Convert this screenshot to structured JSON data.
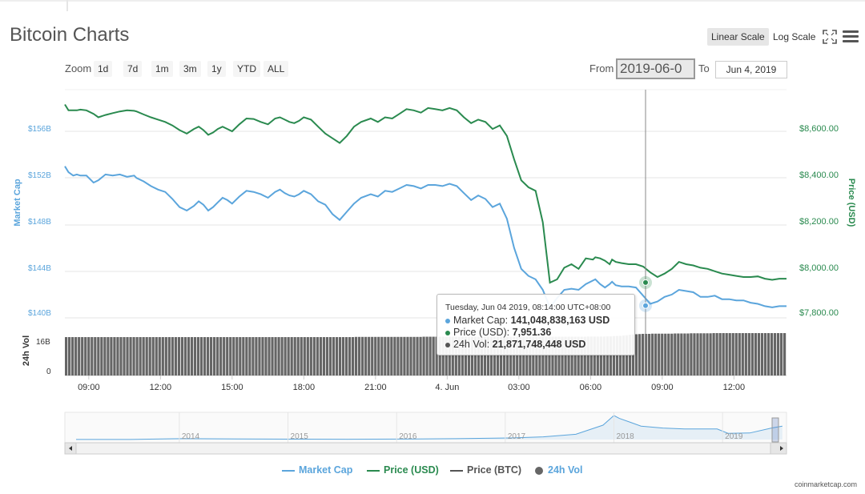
{
  "title": "Bitcoin Charts",
  "scale": {
    "linear_label": "Linear Scale",
    "log_label": "Log Scale"
  },
  "zoom": {
    "label": "Zoom",
    "buttons": [
      "1d",
      "7d",
      "1m",
      "3m",
      "1y",
      "YTD",
      "ALL"
    ]
  },
  "range": {
    "from_label": "From",
    "from_value": "2019-06-0",
    "to_label": "To",
    "to_value": "Jun 4, 2019"
  },
  "tooltip": {
    "timestamp": "Tuesday, Jun 04 2019, 08:14:00 UTC+08:00",
    "market_cap_label": "Market Cap:",
    "market_cap_value": "141,048,838,163 USD",
    "price_label": "Price (USD):",
    "price_value": "7,951.36",
    "vol_label": "24h Vol:",
    "vol_value": "21,871,748,448 USD"
  },
  "legend": [
    "Market Cap",
    "Price (USD)",
    "Price (BTC)",
    "24h Vol"
  ],
  "credit": "coinmarketcap.com",
  "colors": {
    "market_cap": "#5ba5dc",
    "price_usd": "#2a8a4f",
    "price_btc": "#555555",
    "volume": "#666666",
    "navigator": "#5ba5dc"
  },
  "chart_data": [
    {
      "type": "line",
      "x_ticks": [
        "09:00",
        "12:00",
        "15:00",
        "18:00",
        "21:00",
        "4. Jun",
        "03:00",
        "06:00",
        "09:00",
        "12:00"
      ],
      "y_left": {
        "label": "Market Cap",
        "ticks": [
          "$156B",
          "$152B",
          "$148B",
          "$144B",
          "$140B"
        ],
        "range": [
          140,
          156
        ]
      },
      "y_right": {
        "label": "Price (USD)",
        "ticks": [
          "$8,600.00",
          "$8,400.00",
          "$8,200.00",
          "$8,000.00",
          "$7,800.00"
        ],
        "range": [
          7800,
          8600
        ]
      },
      "series": [
        {
          "name": "Market Cap",
          "axis": "left",
          "x": [
            0.0,
            0.15,
            0.35,
            0.5,
            0.65,
            0.9,
            1.2,
            1.4,
            1.7,
            2.0,
            2.3,
            2.6,
            2.9,
            3.0,
            3.3,
            3.6,
            3.9,
            4.2,
            4.5,
            4.8,
            5.1,
            5.4,
            5.6,
            5.8,
            6.0,
            6.2,
            6.4,
            6.6,
            6.8,
            7.0,
            7.3,
            7.6,
            7.9,
            8.2,
            8.5,
            8.8,
            9.0,
            9.2,
            9.4,
            9.6,
            9.8,
            10.0,
            10.3,
            10.6,
            10.9,
            11.2,
            11.5,
            11.8,
            12.1,
            12.4,
            12.8,
            13.1,
            13.4,
            13.7,
            14.0,
            14.3,
            14.6,
            14.9,
            15.2,
            15.5,
            15.8,
            16.1,
            16.4,
            16.7,
            17.0,
            17.3,
            17.6,
            17.9,
            18.2,
            18.5,
            18.8,
            19.1,
            19.4,
            19.7,
            20.0,
            20.3,
            20.6,
            20.9,
            21.2,
            21.5,
            21.8,
            22.1,
            22.2,
            22.4,
            22.6,
            22.8,
            22.9,
            23.05,
            23.3,
            23.6,
            23.9,
            24.2,
            24.5,
            24.8,
            25.1,
            25.4,
            25.7,
            26.0,
            26.3,
            26.6,
            26.9,
            27.2,
            27.5,
            27.8,
            28.1,
            28.4,
            28.7,
            29.0,
            29.3,
            29.6,
            29.9,
            30.2
          ],
          "values": [
            153.0,
            152.5,
            152.2,
            152.3,
            152.2,
            152.2,
            151.6,
            151.8,
            152.3,
            152.2,
            152.3,
            152.1,
            152.2,
            152.0,
            151.7,
            151.3,
            151.0,
            150.8,
            150.2,
            149.5,
            149.2,
            149.6,
            150.0,
            149.7,
            149.2,
            149.5,
            149.9,
            150.3,
            150.1,
            149.8,
            150.4,
            150.9,
            150.8,
            150.6,
            150.3,
            150.8,
            151.0,
            150.7,
            150.5,
            150.4,
            150.6,
            150.9,
            150.6,
            150.0,
            149.7,
            148.9,
            148.4,
            149.1,
            149.8,
            150.3,
            150.6,
            150.4,
            150.9,
            150.8,
            151.1,
            151.4,
            151.3,
            151.1,
            151.4,
            151.4,
            151.3,
            151.5,
            151.3,
            150.7,
            150.1,
            150.5,
            150.2,
            149.5,
            149.8,
            148.5,
            146.0,
            144.2,
            143.6,
            143.3,
            142.4,
            140.9,
            141.7,
            142.4,
            142.5,
            142.4,
            142.9,
            143.2,
            143.3,
            142.9,
            142.6,
            142.9,
            143.1,
            142.8,
            142.7,
            142.7,
            142.6,
            141.9,
            141.2,
            141.4,
            141.8,
            142.0,
            142.4,
            142.3,
            142.2,
            141.8,
            141.8,
            141.9,
            141.6,
            141.6,
            141.5,
            141.5,
            141.3,
            141.2,
            141.0,
            140.9,
            141.0,
            141.0
          ]
        },
        {
          "name": "Price (USD)",
          "axis": "right",
          "x": [
            0.0,
            0.15,
            0.35,
            0.5,
            0.65,
            0.9,
            1.2,
            1.4,
            1.7,
            2.0,
            2.3,
            2.6,
            2.9,
            3.0,
            3.3,
            3.6,
            3.9,
            4.2,
            4.5,
            4.8,
            5.1,
            5.4,
            5.6,
            5.8,
            6.0,
            6.2,
            6.4,
            6.6,
            6.8,
            7.0,
            7.3,
            7.6,
            7.9,
            8.2,
            8.5,
            8.8,
            9.0,
            9.2,
            9.4,
            9.6,
            9.8,
            10.0,
            10.3,
            10.6,
            10.9,
            11.2,
            11.5,
            11.8,
            12.1,
            12.4,
            12.8,
            13.1,
            13.4,
            13.7,
            14.0,
            14.3,
            14.6,
            14.9,
            15.2,
            15.5,
            15.8,
            16.1,
            16.4,
            16.7,
            17.0,
            17.3,
            17.6,
            17.9,
            18.2,
            18.5,
            18.8,
            19.1,
            19.4,
            19.7,
            20.0,
            20.3,
            20.6,
            20.9,
            21.2,
            21.5,
            21.8,
            22.1,
            22.2,
            22.4,
            22.6,
            22.8,
            22.9,
            23.05,
            23.3,
            23.6,
            23.9,
            24.2,
            24.5,
            24.8,
            25.1,
            25.4,
            25.7,
            26.0,
            26.3,
            26.6,
            26.9,
            27.2,
            27.5,
            27.8,
            28.1,
            28.4,
            28.7,
            29.0,
            29.3,
            29.6,
            29.9,
            30.2
          ],
          "values": [
            8715,
            8690,
            8690,
            8690,
            8693,
            8690,
            8675,
            8660,
            8670,
            8678,
            8685,
            8690,
            8688,
            8685,
            8672,
            8660,
            8650,
            8640,
            8625,
            8605,
            8590,
            8610,
            8620,
            8605,
            8585,
            8595,
            8610,
            8620,
            8610,
            8600,
            8630,
            8655,
            8653,
            8640,
            8630,
            8655,
            8660,
            8650,
            8640,
            8635,
            8645,
            8660,
            8650,
            8620,
            8590,
            8570,
            8550,
            8580,
            8620,
            8640,
            8655,
            8640,
            8660,
            8655,
            8675,
            8695,
            8690,
            8680,
            8700,
            8695,
            8690,
            8700,
            8690,
            8660,
            8635,
            8650,
            8640,
            8610,
            8625,
            8580,
            8480,
            8390,
            8360,
            8345,
            8210,
            7951,
            7965,
            8015,
            8030,
            8010,
            8055,
            8050,
            8060,
            8055,
            8045,
            8030,
            8050,
            8040,
            8035,
            8030,
            8030,
            8020,
            7995,
            7975,
            7990,
            8010,
            8040,
            8030,
            8025,
            8015,
            8010,
            8000,
            7990,
            7985,
            7980,
            7975,
            7975,
            7978,
            7968,
            7963,
            7968,
            7968
          ]
        }
      ]
    },
    {
      "type": "bar",
      "y_label": "24h Vol",
      "y_ticks": [
        "16B",
        "0"
      ],
      "range": [
        0,
        16
      ],
      "series": [
        {
          "name": "24h Vol",
          "values_note_free": true,
          "values": [
            20.2,
            20.2,
            20.2,
            20.2,
            20.2,
            20.2,
            20.2,
            20.2,
            20.2,
            20.2,
            20.2,
            20.2,
            20.2,
            20.2,
            20.2,
            20.2,
            20.2,
            20.2,
            20.2,
            20.2,
            20.2,
            20.2,
            20.2,
            20.2,
            20.2,
            20.2,
            20.2,
            20.2,
            20.2,
            20.2,
            20.2,
            20.2,
            20.2,
            20.2,
            20.2,
            20.2,
            20.2,
            20.2,
            20.2,
            20.2,
            20.2,
            20.2,
            20.2,
            20.2,
            20.2,
            20.2,
            20.2,
            20.2,
            20.2,
            20.2,
            20.2,
            20.2,
            20.2,
            20.2,
            20.2,
            20.2,
            20.2,
            20.2,
            20.2,
            20.2,
            20.2,
            20.2,
            20.2,
            20.2,
            20.2,
            20.2,
            20.2,
            20.2,
            20.2,
            20.2,
            20.2,
            20.2,
            20.2,
            20.2,
            20.2,
            20.2,
            20.2,
            20.2,
            20.2,
            20.2,
            20.2,
            20.2,
            20.2,
            20.2,
            20.2,
            20.2,
            20.2,
            20.2,
            20.2,
            20.2,
            20.3,
            20.3,
            20.3,
            20.3,
            20.3,
            20.3,
            20.3,
            20.3,
            20.3,
            20.3,
            20.3,
            20.3,
            20.3,
            20.3,
            20.3,
            20.3,
            20.3,
            20.3,
            20.3,
            20.3,
            20.3,
            20.4,
            20.4,
            20.4,
            20.4,
            20.4,
            20.4,
            20.4,
            20.4,
            20.4,
            20.4,
            20.4,
            20.4,
            20.4,
            20.4,
            20.4,
            20.4,
            20.4,
            20.4,
            20.4,
            20.4,
            20.4,
            20.4,
            20.4,
            20.4,
            20.4,
            20.4,
            20.4,
            20.4,
            20.4,
            20.4,
            20.4,
            20.4,
            20.4,
            20.4,
            20.4,
            20.4,
            20.4,
            20.4,
            20.4,
            20.4,
            20.4,
            20.4,
            20.4,
            20.4,
            20.4,
            20.4,
            20.4,
            20.4,
            20.4,
            20.4,
            20.4,
            20.5,
            20.5,
            20.5,
            20.5,
            20.5,
            20.5,
            20.6,
            20.6,
            20.7,
            20.8,
            20.9,
            21.0,
            21.2,
            21.4,
            21.6,
            21.7,
            21.8,
            21.9,
            21.9,
            21.9,
            22.0,
            22.0,
            22.0,
            22.0,
            22.0,
            22.0,
            22.0,
            22.1,
            22.1,
            22.1,
            22.1,
            22.1,
            22.2,
            22.2,
            22.2,
            22.2,
            22.2,
            22.2,
            22.2,
            22.3,
            22.3,
            22.3,
            22.3,
            22.3,
            22.3,
            22.3,
            22.3,
            22.3,
            22.3,
            22.3,
            22.3,
            22.3,
            22.3,
            22.3,
            22.3,
            22.3,
            22.3,
            22.3,
            22.3,
            22.3,
            22.3,
            22.3
          ]
        }
      ]
    },
    {
      "type": "area",
      "role": "navigator",
      "x_ticks": [
        "2014",
        "2015",
        "2016",
        "2017",
        "2018",
        "2019"
      ],
      "series": [
        {
          "name": "Market Cap",
          "x": [
            2013.0,
            2013.5,
            2013.9,
            2014.0,
            2014.5,
            2015.0,
            2015.5,
            2016.0,
            2016.5,
            2017.0,
            2017.3,
            2017.6,
            2017.85,
            2017.95,
            2018.0,
            2018.1,
            2018.2,
            2018.4,
            2018.6,
            2018.9,
            2019.0,
            2019.2,
            2019.4,
            2019.5
          ],
          "values": [
            1,
            1,
            8,
            9,
            6,
            4,
            3,
            5,
            9,
            17,
            28,
            55,
            150,
            250,
            220,
            180,
            140,
            120,
            110,
            110,
            65,
            68,
            120,
            140
          ]
        }
      ]
    }
  ]
}
